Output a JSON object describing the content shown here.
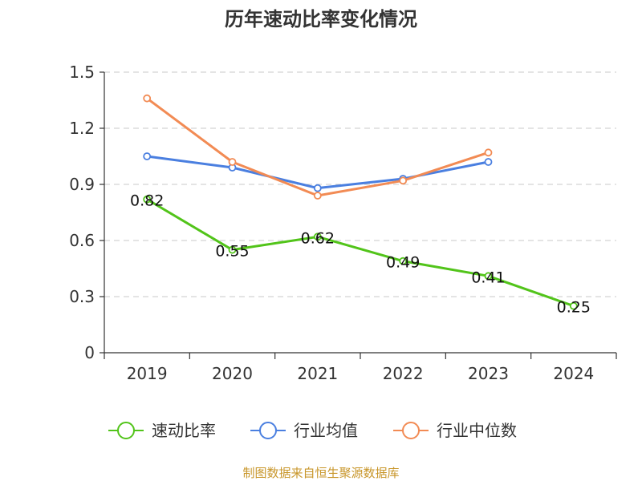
{
  "chart_data": {
    "type": "line",
    "title": "历年速动比率变化情况",
    "categories": [
      "2019",
      "2020",
      "2021",
      "2022",
      "2023",
      "2024"
    ],
    "y_ticks": [
      "0",
      "0.3",
      "0.6",
      "0.9",
      "1.2",
      "1.5"
    ],
    "ylim": [
      0,
      1.5
    ],
    "grid": true,
    "legend_position": "bottom",
    "series": [
      {
        "name": "速动比率",
        "color": "#52c41a",
        "values": [
          0.82,
          0.55,
          0.62,
          0.49,
          0.41,
          0.25
        ],
        "labels": [
          "0.82",
          "0.55",
          "0.62",
          "0.49",
          "0.41",
          "0.25"
        ]
      },
      {
        "name": "行业均值",
        "color": "#4a7fe0",
        "values": [
          1.05,
          0.99,
          0.88,
          0.93,
          1.02,
          null
        ]
      },
      {
        "name": "行业中位数",
        "color": "#f28b54",
        "values": [
          1.36,
          1.02,
          0.84,
          0.92,
          1.07,
          null
        ]
      }
    ]
  },
  "source_text": "制图数据来自恒生聚源数据库",
  "source_color": "#c8962a"
}
